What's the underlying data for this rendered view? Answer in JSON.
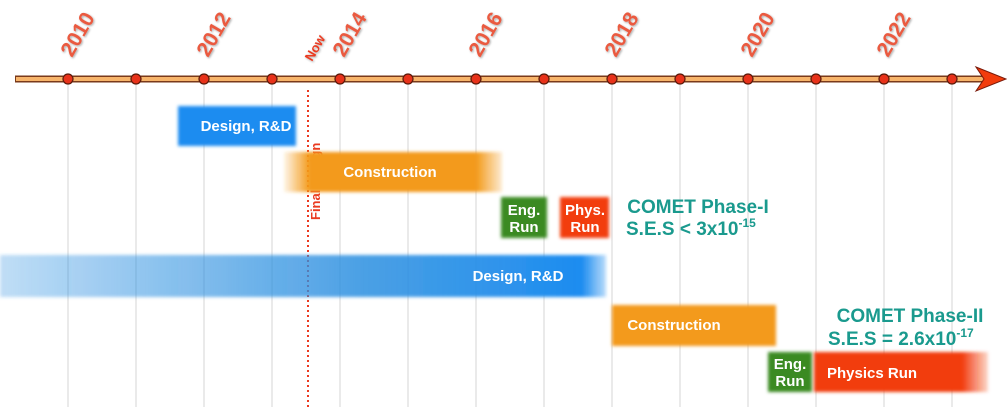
{
  "timeline": {
    "years": [
      "2010",
      "2012",
      "2014",
      "2016",
      "2018",
      "2020",
      "2022"
    ],
    "now_label": "Now",
    "final_design_label": "Final Design"
  },
  "phase1": {
    "design": "Design, R&D",
    "construction": "Construction",
    "eng_run": [
      "Eng.",
      "Run"
    ],
    "phys_run": [
      "Phys.",
      "Run"
    ],
    "title": "COMET Phase-I",
    "ses": "S.E.S < 3x10",
    "ses_exponent": "-15"
  },
  "phase2": {
    "design": "Design, R&D",
    "construction": "Construction",
    "eng_run": [
      "Eng.",
      "Run"
    ],
    "physics_run": "Physics Run",
    "title": "COMET Phase-II",
    "ses": "S.E.S = 2.6x10",
    "ses_exponent": "-17"
  }
}
